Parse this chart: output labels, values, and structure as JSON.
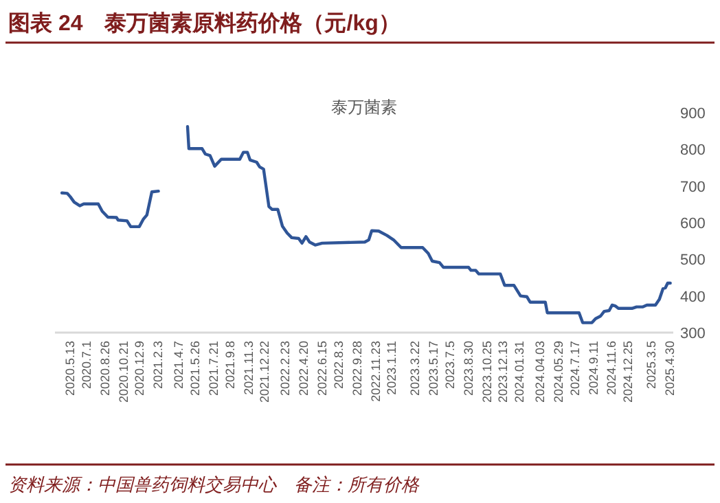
{
  "chart_data": {
    "type": "line",
    "title": "图表 24　泰万菌素原料药价格（元/kg）",
    "subtitle": "泰万菌素",
    "annotations": [
      "资料来源：中国兽药饲料交易中心　备注：所有价格"
    ],
    "x": [
      "2020-04-18",
      "2020-05-04",
      "2020-05-13",
      "2020-05-25",
      "2020-06-11",
      "2020-06-23",
      "2020-08-06",
      "2020-08-18",
      "2020-09-04",
      "2020-09-30",
      "2020-10-05",
      "2020-11-01",
      "2020-11-12",
      "2020-12-08",
      "2020-12-20",
      "2020-12-31",
      "2021-01-15",
      "2021-02-04",
      "2021-03-06",
      "2021-05-03",
      "2021-05-07",
      "2021-06-16",
      "2021-06-26",
      "2021-07-10",
      "2021-07-24",
      "2021-08-13",
      "2021-10-08",
      "2021-10-19",
      "2021-10-31",
      "2021-11-08",
      "2021-11-28",
      "2021-12-07",
      "2021-12-19",
      "2022-01-04",
      "2022-01-14",
      "2022-01-31",
      "2022-02-14",
      "2022-02-28",
      "2022-03-14",
      "2022-04-04",
      "2022-04-14",
      "2022-04-26",
      "2022-05-07",
      "2022-05-24",
      "2022-06-14",
      "2022-10-21",
      "2022-11-02",
      "2022-11-11",
      "2022-12-02",
      "2022-12-27",
      "2023-01-16",
      "2023-02-08",
      "2023-04-14",
      "2023-05-01",
      "2023-05-13",
      "2023-06-04",
      "2023-06-16",
      "2023-08-31",
      "2023-09-07",
      "2023-09-21",
      "2023-10-01",
      "2023-12-05",
      "2023-12-18",
      "2024-01-15",
      "2024-02-04",
      "2024-02-23",
      "2024-03-04",
      "2024-04-19",
      "2024-04-25",
      "2024-07-30",
      "2024-08-10",
      "2024-09-07",
      "2024-09-18",
      "2024-10-03",
      "2024-10-14",
      "2024-10-29",
      "2024-11-07",
      "2024-11-16",
      "2024-11-26",
      "2025-01-06",
      "2025-01-20",
      "2025-02-07",
      "2025-02-20",
      "2025-03-18",
      "2025-03-30",
      "2025-04-10",
      "2025-04-17",
      "2025-04-24",
      "2025-05-02"
    ],
    "series": [
      {
        "color": "#2f5597",
        "values": [
          681,
          680,
          671,
          656,
          646,
          651,
          651,
          631,
          615,
          614,
          607,
          605,
          589,
          589,
          609,
          621,
          684,
          686,
          null,
          862,
          802,
          802,
          787,
          783,
          754,
          773,
          773,
          792,
          792,
          771,
          765,
          752,
          746,
          644,
          636,
          636,
          590,
          572,
          559,
          557,
          544,
          562,
          547,
          539,
          544,
          547,
          553,
          578,
          577,
          565,
          553,
          532,
          532,
          516,
          495,
          491,
          478,
          478,
          470,
          470,
          460,
          460,
          429,
          429,
          400,
          398,
          383,
          383,
          354,
          354,
          327,
          327,
          338,
          345,
          358,
          360,
          375,
          373,
          366,
          366,
          370,
          370,
          375,
          375,
          391,
          420,
          422,
          435,
          435
        ]
      }
    ],
    "xlim": [
      "2020-03-28",
      "2025-05-11"
    ],
    "xticks": [
      {
        "value": "2020-05-13",
        "label": "2020.5.13"
      },
      {
        "value": "2020-07-01",
        "label": "2020.7.1"
      },
      {
        "value": "2020-08-26",
        "label": "2020.8.26"
      },
      {
        "value": "2020-10-21",
        "label": "2020.10.21"
      },
      {
        "value": "2020-12-09",
        "label": "2020.12.9"
      },
      {
        "value": "2021-02-03",
        "label": "2021.2.3"
      },
      {
        "value": "2021-04-07",
        "label": "2021.4.7"
      },
      {
        "value": "2021-05-26",
        "label": "2021.5.26"
      },
      {
        "value": "2021-07-21",
        "label": "2021.7.21"
      },
      {
        "value": "2021-09-08",
        "label": "2021.9.8"
      },
      {
        "value": "2021-11-03",
        "label": "2021.11.3"
      },
      {
        "value": "2021-12-22",
        "label": "2021.12.22"
      },
      {
        "value": "2022-02-23",
        "label": "2022.2.23"
      },
      {
        "value": "2022-04-20",
        "label": "2022.4.20"
      },
      {
        "value": "2022-06-15",
        "label": "2022.6.15"
      },
      {
        "value": "2022-08-03",
        "label": "2022.8.3"
      },
      {
        "value": "2022-09-28",
        "label": "2022.9.28"
      },
      {
        "value": "2022-11-23",
        "label": "2022.11.23"
      },
      {
        "value": "2023-01-11",
        "label": "2023.1.11"
      },
      {
        "value": "2023-03-22",
        "label": "2023.3.22"
      },
      {
        "value": "2023-05-17",
        "label": "2023.5.17"
      },
      {
        "value": "2023-07-05",
        "label": "2023.7.5"
      },
      {
        "value": "2023-08-30",
        "label": "2023.8.30"
      },
      {
        "value": "2023-10-25",
        "label": "2023.10.25"
      },
      {
        "value": "2023-12-13",
        "label": "2023.12.13"
      },
      {
        "value": "2024-01-31",
        "label": "2024.01.31"
      },
      {
        "value": "2024-04-03",
        "label": "2024.04.03"
      },
      {
        "value": "2024-05-29",
        "label": "2024.05.29"
      },
      {
        "value": "2024-07-17",
        "label": "2024.7.17"
      },
      {
        "value": "2024-09-11",
        "label": "2024.9.11"
      },
      {
        "value": "2024-11-06",
        "label": "2024.11.6"
      },
      {
        "value": "2024-12-25",
        "label": "2024.12.25"
      },
      {
        "value": "2025-03-05",
        "label": "2025.3.5"
      },
      {
        "value": "2025-04-30",
        "label": "2025.4.30"
      }
    ],
    "ylim": [
      300,
      900
    ],
    "yticks": [
      300,
      400,
      500,
      600,
      700,
      800,
      900
    ],
    "grid": false,
    "marker": "none",
    "line_style": "solid"
  }
}
